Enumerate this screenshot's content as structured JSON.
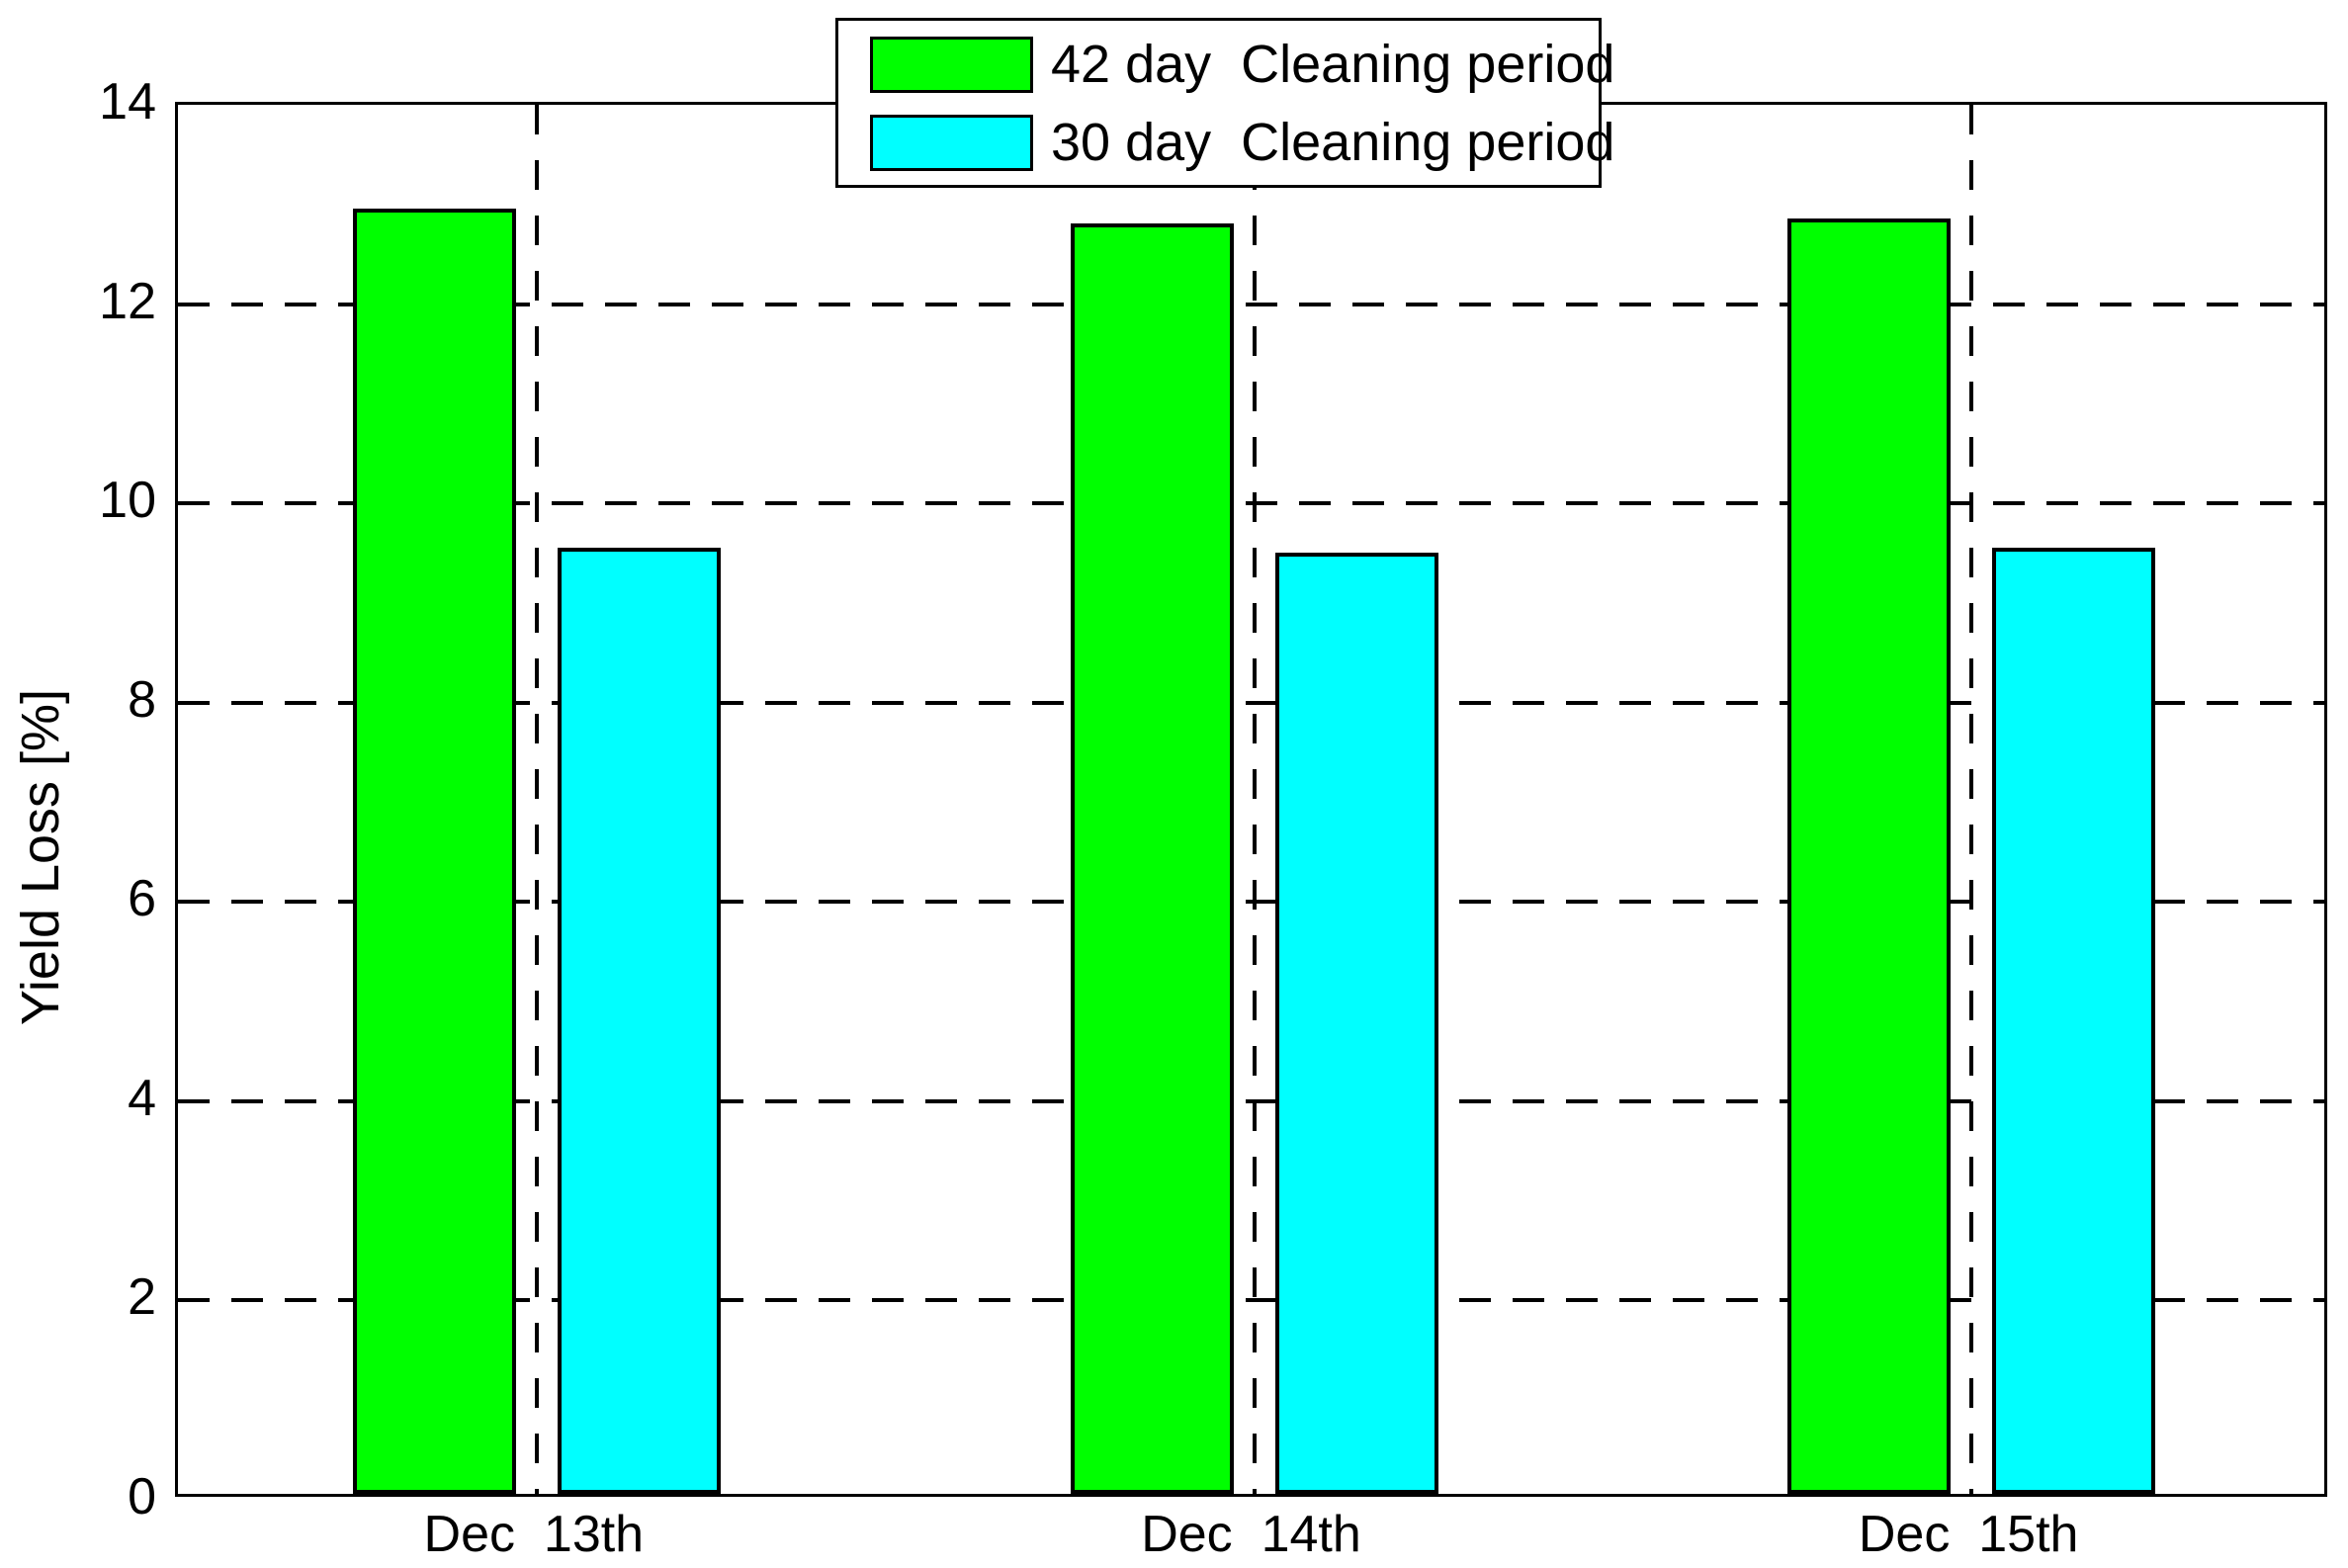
{
  "chart_data": {
    "type": "bar",
    "title": "",
    "categories": [
      "Dec  13th",
      "Dec  14th",
      "Dec  15th"
    ],
    "series": [
      {
        "name": "42 day  Cleaning period",
        "color": "#00ff00",
        "values": [
          12.9,
          12.75,
          12.8
        ]
      },
      {
        "name": "30 day  Cleaning period",
        "color": "#00ffff",
        "values": [
          9.5,
          9.45,
          9.5
        ]
      }
    ],
    "xlabel": "",
    "ylabel": "Yield Loss [%]",
    "ylim": [
      0,
      14
    ],
    "yticks": [
      0,
      2,
      4,
      6,
      8,
      10,
      12,
      14
    ],
    "grid": "dashed",
    "grid_color": "#000000",
    "axis_color": "#000000",
    "background_color": "#ffffff",
    "legend_position": "top-center"
  }
}
